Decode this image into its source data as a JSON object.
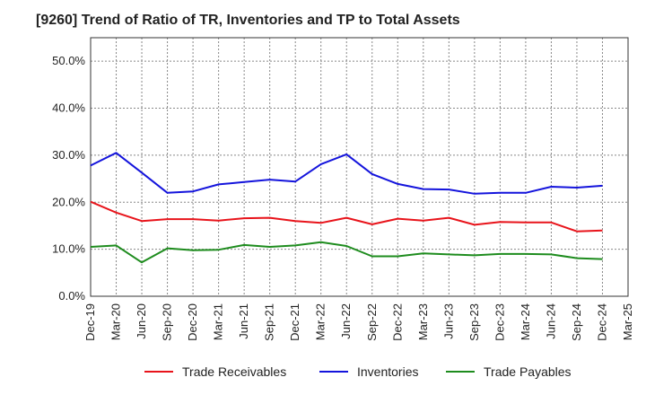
{
  "chart_data": {
    "type": "line",
    "title": "[9260]  Trend of Ratio of TR, Inventories and TP to Total Assets",
    "xlabel": "",
    "ylabel": "",
    "ylim": [
      0,
      55
    ],
    "y_ticks": [
      "0.0%",
      "10.0%",
      "20.0%",
      "30.0%",
      "40.0%",
      "50.0%"
    ],
    "y_tick_values": [
      0,
      10,
      20,
      30,
      40,
      50
    ],
    "x_ticks": [
      "Dec-19",
      "Mar-20",
      "Jun-20",
      "Sep-20",
      "Dec-20",
      "Mar-21",
      "Jun-21",
      "Sep-21",
      "Dec-21",
      "Mar-22",
      "Jun-22",
      "Sep-22",
      "Dec-22",
      "Mar-23",
      "Jun-23",
      "Sep-23",
      "Dec-23",
      "Mar-24",
      "Jun-24",
      "Sep-24",
      "Dec-24",
      "Mar-25"
    ],
    "x": [
      "Dec-19",
      "Mar-20",
      "Jun-20",
      "Sep-20",
      "Dec-20",
      "Mar-21",
      "Jun-21",
      "Sep-21",
      "Dec-21",
      "Mar-22",
      "Jun-22",
      "Sep-22",
      "Dec-22",
      "Mar-23",
      "Jun-23",
      "Sep-23",
      "Dec-23",
      "Mar-24",
      "Jun-24",
      "Sep-24",
      "Dec-24"
    ],
    "grid": true,
    "legend_position": "bottom",
    "series": [
      {
        "name": "Trade Receivables",
        "color": "#e8141b",
        "values": [
          20.1,
          17.8,
          16.0,
          16.4,
          16.4,
          16.1,
          16.6,
          16.7,
          16.0,
          15.6,
          16.7,
          15.3,
          16.5,
          16.1,
          16.7,
          15.2,
          15.8,
          15.7,
          15.7,
          13.8,
          14.0
        ]
      },
      {
        "name": "Inventories",
        "color": "#1414dc",
        "values": [
          27.8,
          30.5,
          26.3,
          22.0,
          22.3,
          23.8,
          24.3,
          24.8,
          24.4,
          28.1,
          30.2,
          26.0,
          23.9,
          22.8,
          22.7,
          21.8,
          22.0,
          22.0,
          23.3,
          23.1,
          23.5
        ]
      },
      {
        "name": "Trade Payables",
        "color": "#1e8c1e",
        "values": [
          10.5,
          10.8,
          7.2,
          10.2,
          9.8,
          9.9,
          10.9,
          10.5,
          10.8,
          11.5,
          10.7,
          8.5,
          8.5,
          9.1,
          8.9,
          8.7,
          9.0,
          9.0,
          8.9,
          8.1,
          7.9
        ]
      }
    ]
  }
}
